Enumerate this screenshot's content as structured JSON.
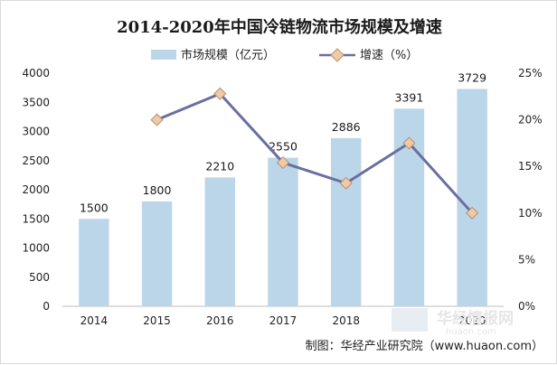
{
  "chart_data": {
    "type": "bar+line",
    "title": "2014-2020年中国冷链物流市场规模及增速",
    "categories": [
      "2014",
      "2015",
      "2016",
      "2017",
      "2018",
      "2019",
      "2020"
    ],
    "bar_series": {
      "name": "市场规模（亿元）",
      "values": [
        1500,
        1800,
        2210,
        2550,
        2886,
        3391,
        3729
      ],
      "color": "#bcd6e9"
    },
    "line_series": {
      "name": "增速（%）",
      "values": [
        null,
        20.0,
        22.8,
        15.4,
        13.2,
        17.5,
        10.0
      ],
      "color": "#6a6f9e",
      "marker_color": "#f0c9a6"
    },
    "y_left": {
      "min": 0,
      "max": 4000,
      "step": 500
    },
    "y_right": {
      "min": 0,
      "max": 25,
      "step": 5,
      "ticks": [
        "0%",
        "5%",
        "10%",
        "15%",
        "20%",
        "25%"
      ]
    },
    "grid": false,
    "legend_position": "top-center"
  },
  "footer": {
    "credit": "制图：华经产业研究院（www.huaon.com）"
  },
  "watermark": {
    "cn": "华经情报网",
    "en": "huaon.com"
  }
}
